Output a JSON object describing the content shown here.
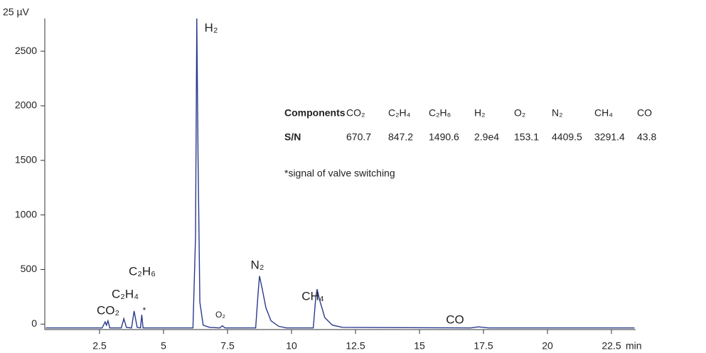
{
  "chart_data": {
    "type": "line",
    "y_label": "25 µV",
    "x_label": "min",
    "x": [
      0.4,
      2.6,
      2.72,
      2.77,
      2.83,
      2.9,
      3.35,
      3.45,
      3.55,
      3.75,
      3.85,
      3.97,
      4.1,
      4.15,
      4.2,
      6.15,
      6.25,
      6.3,
      6.35,
      6.42,
      6.55,
      6.8,
      7.2,
      7.3,
      7.4,
      8.6,
      8.7,
      8.75,
      8.85,
      9.0,
      9.2,
      9.5,
      9.8,
      10.85,
      10.95,
      11.0,
      11.1,
      11.3,
      11.6,
      12.0,
      17.0,
      17.3,
      17.7,
      23.4
    ],
    "values": [
      -35,
      -35,
      20,
      -10,
      30,
      -35,
      -35,
      50,
      -30,
      -35,
      120,
      -30,
      -35,
      85,
      -35,
      -35,
      800,
      2800,
      1500,
      200,
      -10,
      -30,
      -35,
      -15,
      -35,
      -35,
      300,
      440,
      330,
      150,
      30,
      -20,
      -35,
      -35,
      250,
      320,
      220,
      60,
      -10,
      -30,
      -35,
      -25,
      -35,
      -35
    ],
    "color": "#2a3a8c",
    "xlim": [
      0.36,
      23.4
    ],
    "ylim": [
      -50,
      2800
    ],
    "xticks": [
      2.5,
      5,
      7.5,
      10,
      12.5,
      15,
      17.5,
      20,
      22.5
    ],
    "yticks": [
      0,
      500,
      1000,
      1500,
      2000,
      2500
    ],
    "peak_labels": [
      "CO₂",
      "C₂H₄",
      "C₂H₆",
      "*",
      "H₂",
      "O₂",
      "N₂",
      "CH₄",
      "CO"
    ],
    "table": {
      "header": [
        "Components",
        "CO₂",
        "C₂H₄",
        "C₂H₆",
        "H₂",
        "O₂",
        "N₂",
        "CH₄",
        "CO"
      ],
      "rows": [
        [
          "S/N",
          "670.7",
          "847.2",
          "1490.6",
          "2.9e4",
          "153.1",
          "4409.5",
          "3291.4",
          "43.8"
        ]
      ]
    },
    "note": "*signal of valve switching"
  }
}
